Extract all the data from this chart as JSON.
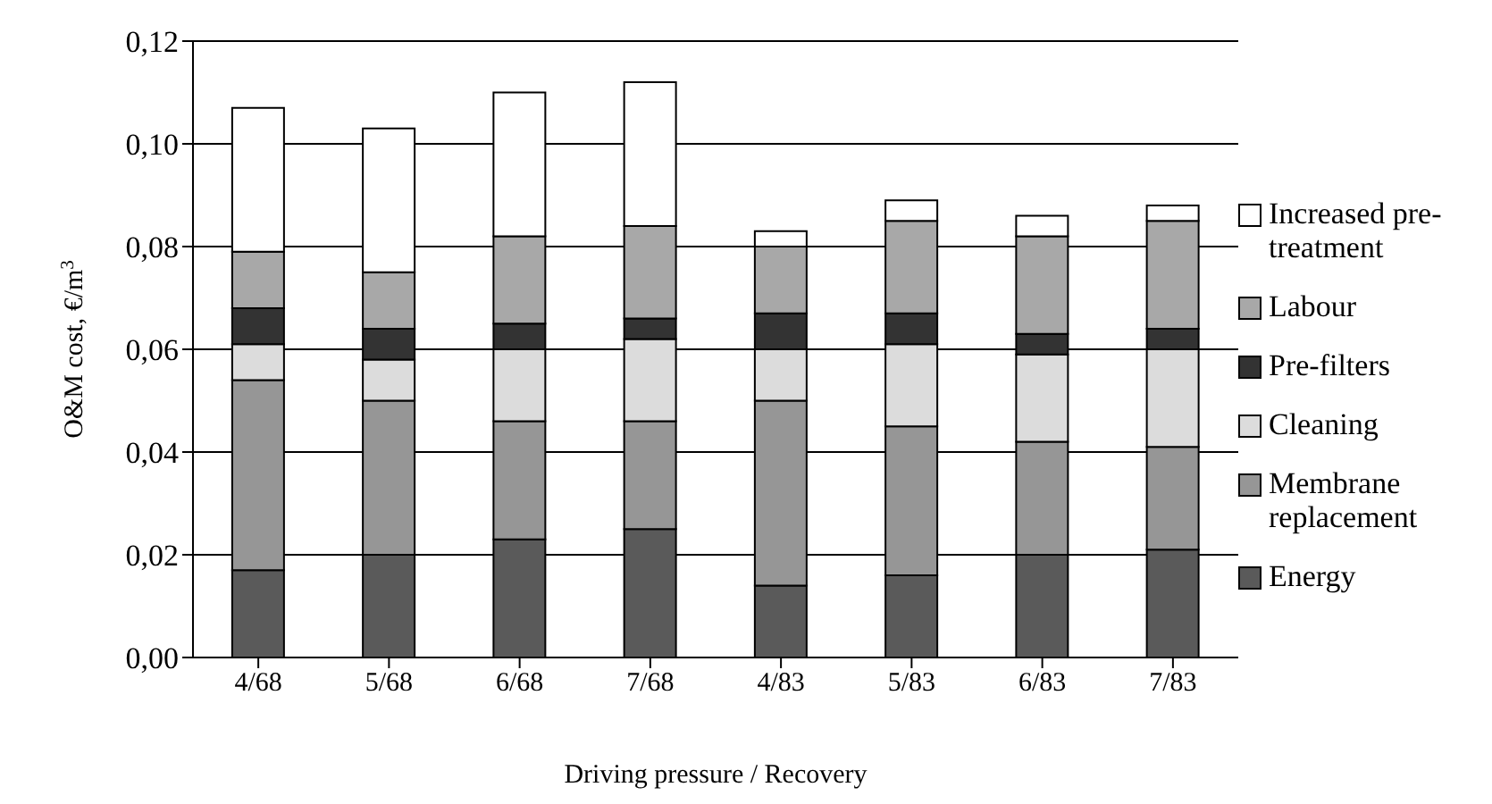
{
  "chart_data": {
    "type": "bar",
    "stacked": true,
    "xlabel": "Driving pressure / Recovery",
    "ylabel": "O&M cost, €/m$^{3}$",
    "categories": [
      "4/68",
      "5/68",
      "6/68",
      "7/68",
      "4/83",
      "5/83",
      "6/83",
      "7/83"
    ],
    "series": [
      {
        "name": "Energy",
        "color": "#5a5a5a",
        "values": [
          0.017,
          0.02,
          0.023,
          0.025,
          0.014,
          0.016,
          0.02,
          0.021
        ]
      },
      {
        "name": "Membrane replacement",
        "color": "#969696",
        "values": [
          0.037,
          0.03,
          0.023,
          0.021,
          0.036,
          0.029,
          0.022,
          0.02
        ]
      },
      {
        "name": "Cleaning",
        "color": "#dcdcdc",
        "values": [
          0.007,
          0.008,
          0.014,
          0.016,
          0.01,
          0.016,
          0.017,
          0.019
        ]
      },
      {
        "name": "Pre-filters",
        "color": "#333333",
        "values": [
          0.007,
          0.006,
          0.005,
          0.004,
          0.007,
          0.006,
          0.004,
          0.004
        ]
      },
      {
        "name": "Labour",
        "color": "#a8a8a8",
        "values": [
          0.011,
          0.011,
          0.017,
          0.018,
          0.013,
          0.018,
          0.019,
          0.021
        ]
      },
      {
        "name": "Increased pre-treatment",
        "color": "#ffffff",
        "values": [
          0.028,
          0.028,
          0.028,
          0.028,
          0.003,
          0.004,
          0.004,
          0.003
        ]
      }
    ],
    "ylim": [
      0,
      0.12
    ],
    "yticks": [
      {
        "value": 0,
        "label": "0,00"
      },
      {
        "value": 0.02,
        "label": "0,02"
      },
      {
        "value": 0.04,
        "label": "0,04"
      },
      {
        "value": 0.06,
        "label": "0,06"
      },
      {
        "value": 0.08,
        "label": "0,08"
      },
      {
        "value": 0.1,
        "label": "0,10"
      },
      {
        "value": 0.12,
        "label": "0,12"
      }
    ],
    "grid": "y",
    "legend": "right"
  }
}
